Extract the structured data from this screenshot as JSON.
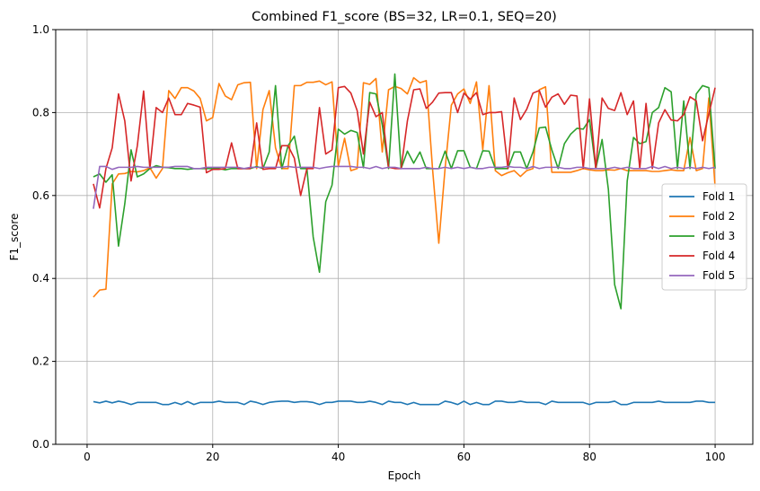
{
  "chart_data": {
    "type": "line",
    "title": "Combined F1_score (BS=32, LR=0.1, SEQ=20)",
    "xlabel": "Epoch",
    "ylabel": "F1_score",
    "xlim": [
      -5,
      106
    ],
    "ylim": [
      0.0,
      1.0
    ],
    "xticks": [
      0,
      20,
      40,
      60,
      80,
      100
    ],
    "yticks": [
      0.0,
      0.2,
      0.4,
      0.6,
      0.8,
      1.0
    ],
    "xtick_labels": [
      "0",
      "20",
      "40",
      "60",
      "80",
      "100"
    ],
    "ytick_labels": [
      "0.0",
      "0.2",
      "0.4",
      "0.6",
      "0.8",
      "1.0"
    ],
    "grid": true,
    "legend_position": "center-right",
    "x_start": 1,
    "series": [
      {
        "name": "Fold 1",
        "color": "#1f77b4",
        "values": [
          0.103,
          0.1,
          0.104,
          0.1,
          0.104,
          0.101,
          0.096,
          0.101,
          0.101,
          0.101,
          0.101,
          0.096,
          0.096,
          0.101,
          0.096,
          0.103,
          0.096,
          0.101,
          0.101,
          0.101,
          0.104,
          0.101,
          0.101,
          0.101,
          0.096,
          0.104,
          0.101,
          0.096,
          0.101,
          0.103,
          0.104,
          0.104,
          0.101,
          0.103,
          0.103,
          0.101,
          0.096,
          0.101,
          0.101,
          0.104,
          0.104,
          0.104,
          0.101,
          0.101,
          0.104,
          0.101,
          0.096,
          0.104,
          0.101,
          0.101,
          0.096,
          0.101,
          0.096,
          0.096,
          0.096,
          0.096,
          0.104,
          0.101,
          0.096,
          0.104,
          0.096,
          0.101,
          0.096,
          0.096,
          0.104,
          0.104,
          0.101,
          0.101,
          0.104,
          0.101,
          0.101,
          0.101,
          0.096,
          0.104,
          0.101,
          0.101,
          0.101,
          0.101,
          0.101,
          0.096,
          0.101,
          0.101,
          0.101,
          0.104,
          0.096,
          0.096,
          0.101,
          0.101,
          0.101,
          0.101,
          0.104,
          0.101,
          0.101,
          0.101,
          0.101,
          0.101,
          0.104,
          0.104,
          0.101,
          0.101
        ]
      },
      {
        "name": "Fold 2",
        "color": "#ff7f0e",
        "values": [
          0.355,
          0.372,
          0.374,
          0.628,
          0.652,
          0.653,
          0.658,
          0.657,
          0.66,
          0.667,
          0.642,
          0.665,
          0.853,
          0.834,
          0.86,
          0.86,
          0.852,
          0.834,
          0.78,
          0.788,
          0.87,
          0.84,
          0.831,
          0.867,
          0.872,
          0.873,
          0.665,
          0.807,
          0.853,
          0.715,
          0.665,
          0.665,
          0.865,
          0.865,
          0.873,
          0.873,
          0.876,
          0.867,
          0.874,
          0.67,
          0.738,
          0.66,
          0.665,
          0.872,
          0.868,
          0.882,
          0.705,
          0.855,
          0.863,
          0.858,
          0.845,
          0.884,
          0.872,
          0.877,
          0.665,
          0.485,
          0.665,
          0.818,
          0.845,
          0.857,
          0.822,
          0.874,
          0.711,
          0.865,
          0.66,
          0.648,
          0.655,
          0.66,
          0.646,
          0.66,
          0.665,
          0.855,
          0.862,
          0.656,
          0.656,
          0.656,
          0.656,
          0.66,
          0.665,
          0.662,
          0.66,
          0.66,
          0.662,
          0.661,
          0.665,
          0.66,
          0.66,
          0.66,
          0.66,
          0.658,
          0.658,
          0.66,
          0.662,
          0.66,
          0.66,
          0.74,
          0.66,
          0.665,
          0.835,
          0.62
        ]
      },
      {
        "name": "Fold 3",
        "color": "#2ca02c",
        "values": [
          0.645,
          0.652,
          0.632,
          0.65,
          0.478,
          0.58,
          0.71,
          0.645,
          0.652,
          0.665,
          0.672,
          0.668,
          0.667,
          0.665,
          0.665,
          0.663,
          0.665,
          0.665,
          0.665,
          0.665,
          0.665,
          0.662,
          0.665,
          0.665,
          0.665,
          0.665,
          0.67,
          0.665,
          0.705,
          0.865,
          0.665,
          0.72,
          0.743,
          0.665,
          0.665,
          0.5,
          0.415,
          0.585,
          0.625,
          0.76,
          0.748,
          0.757,
          0.752,
          0.667,
          0.848,
          0.845,
          0.77,
          0.665,
          0.893,
          0.665,
          0.707,
          0.678,
          0.705,
          0.665,
          0.665,
          0.665,
          0.707,
          0.665,
          0.708,
          0.708,
          0.668,
          0.665,
          0.708,
          0.707,
          0.665,
          0.665,
          0.665,
          0.705,
          0.705,
          0.665,
          0.705,
          0.763,
          0.765,
          0.71,
          0.665,
          0.725,
          0.748,
          0.762,
          0.76,
          0.783,
          0.665,
          0.735,
          0.615,
          0.385,
          0.327,
          0.635,
          0.74,
          0.725,
          0.73,
          0.8,
          0.812,
          0.86,
          0.85,
          0.665,
          0.828,
          0.665,
          0.845,
          0.865,
          0.86,
          0.665
        ]
      },
      {
        "name": "Fold 4",
        "color": "#d62728",
        "values": [
          0.628,
          0.57,
          0.665,
          0.715,
          0.845,
          0.78,
          0.635,
          0.72,
          0.852,
          0.665,
          0.812,
          0.8,
          0.835,
          0.795,
          0.795,
          0.822,
          0.818,
          0.813,
          0.655,
          0.663,
          0.663,
          0.665,
          0.727,
          0.665,
          0.665,
          0.665,
          0.775,
          0.663,
          0.665,
          0.665,
          0.72,
          0.72,
          0.69,
          0.6,
          0.665,
          0.665,
          0.812,
          0.7,
          0.71,
          0.86,
          0.863,
          0.847,
          0.805,
          0.7,
          0.825,
          0.79,
          0.8,
          0.668,
          0.665,
          0.665,
          0.78,
          0.855,
          0.857,
          0.81,
          0.825,
          0.847,
          0.848,
          0.848,
          0.8,
          0.847,
          0.832,
          0.848,
          0.795,
          0.8,
          0.8,
          0.802,
          0.665,
          0.835,
          0.783,
          0.808,
          0.847,
          0.853,
          0.813,
          0.837,
          0.845,
          0.82,
          0.842,
          0.84,
          0.665,
          0.833,
          0.665,
          0.835,
          0.81,
          0.805,
          0.848,
          0.795,
          0.828,
          0.665,
          0.822,
          0.665,
          0.775,
          0.807,
          0.782,
          0.78,
          0.795,
          0.838,
          0.828,
          0.732,
          0.797,
          0.86
        ]
      },
      {
        "name": "Fold 5",
        "color": "#9467bd",
        "values": [
          0.568,
          0.67,
          0.67,
          0.663,
          0.668,
          0.668,
          0.668,
          0.67,
          0.668,
          0.668,
          0.668,
          0.668,
          0.668,
          0.67,
          0.67,
          0.67,
          0.665,
          0.665,
          0.668,
          0.668,
          0.668,
          0.668,
          0.668,
          0.668,
          0.665,
          0.668,
          0.668,
          0.668,
          0.668,
          0.668,
          0.668,
          0.67,
          0.668,
          0.668,
          0.668,
          0.668,
          0.665,
          0.668,
          0.67,
          0.67,
          0.67,
          0.67,
          0.668,
          0.668,
          0.665,
          0.67,
          0.665,
          0.668,
          0.668,
          0.665,
          0.665,
          0.665,
          0.665,
          0.668,
          0.665,
          0.665,
          0.668,
          0.665,
          0.668,
          0.665,
          0.668,
          0.665,
          0.665,
          0.668,
          0.668,
          0.668,
          0.67,
          0.668,
          0.668,
          0.665,
          0.67,
          0.665,
          0.668,
          0.668,
          0.668,
          0.665,
          0.665,
          0.668,
          0.668,
          0.665,
          0.665,
          0.665,
          0.665,
          0.668,
          0.665,
          0.668,
          0.665,
          0.665,
          0.665,
          0.67,
          0.665,
          0.67,
          0.665,
          0.668,
          0.665,
          0.668,
          0.665,
          0.668,
          0.665,
          0.668
        ]
      }
    ]
  }
}
